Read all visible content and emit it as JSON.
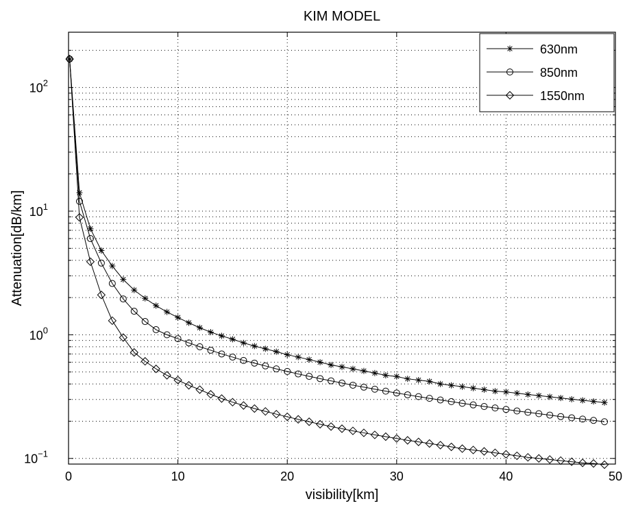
{
  "chart_data": {
    "type": "line",
    "title": "KIM MODEL",
    "xlabel": "visibility[km]",
    "ylabel": "Attenuation[dB/km]",
    "xlim": [
      0,
      50
    ],
    "ylim": [
      0.09,
      280
    ],
    "yscale": "log",
    "grid": true,
    "legend_position": "top-right",
    "x_ticks": [
      "0",
      "10",
      "20",
      "30",
      "40",
      "50"
    ],
    "y_ticks": [
      {
        "base": "10",
        "exp": "−1"
      },
      {
        "base": "10",
        "exp": "0"
      },
      {
        "base": "10",
        "exp": "1"
      },
      {
        "base": "10",
        "exp": "2"
      }
    ],
    "x": [
      0.1,
      1,
      2,
      3,
      4,
      5,
      6,
      7,
      8,
      9,
      10,
      11,
      12,
      13,
      14,
      15,
      16,
      17,
      18,
      19,
      20,
      21,
      22,
      23,
      24,
      25,
      26,
      27,
      28,
      29,
      30,
      31,
      32,
      33,
      34,
      35,
      36,
      37,
      38,
      39,
      40,
      41,
      42,
      43,
      44,
      45,
      46,
      47,
      48,
      49
    ],
    "series": [
      {
        "name": "630nm",
        "marker": "star",
        "values": [
          170,
          14.1,
          7.2,
          4.8,
          3.6,
          2.8,
          2.3,
          1.97,
          1.72,
          1.53,
          1.38,
          1.25,
          1.14,
          1.05,
          0.98,
          0.92,
          0.86,
          0.81,
          0.77,
          0.73,
          0.69,
          0.66,
          0.63,
          0.6,
          0.57,
          0.55,
          0.53,
          0.51,
          0.49,
          0.47,
          0.46,
          0.44,
          0.43,
          0.42,
          0.4,
          0.39,
          0.38,
          0.37,
          0.36,
          0.35,
          0.345,
          0.337,
          0.329,
          0.322,
          0.315,
          0.308,
          0.301,
          0.295,
          0.289,
          0.283
        ]
      },
      {
        "name": "850nm",
        "marker": "circle",
        "values": [
          170,
          12.0,
          6.0,
          3.8,
          2.6,
          1.95,
          1.55,
          1.28,
          1.1,
          1.0,
          0.93,
          0.86,
          0.8,
          0.75,
          0.7,
          0.66,
          0.62,
          0.59,
          0.56,
          0.53,
          0.505,
          0.482,
          0.461,
          0.442,
          0.424,
          0.407,
          0.391,
          0.377,
          0.363,
          0.35,
          0.338,
          0.327,
          0.316,
          0.306,
          0.297,
          0.288,
          0.279,
          0.271,
          0.263,
          0.256,
          0.249,
          0.242,
          0.236,
          0.23,
          0.224,
          0.218,
          0.213,
          0.208,
          0.203,
          0.198
        ]
      },
      {
        "name": "1550nm",
        "marker": "diamond",
        "values": [
          170,
          8.9,
          3.9,
          2.1,
          1.3,
          0.95,
          0.72,
          0.61,
          0.53,
          0.47,
          0.43,
          0.39,
          0.36,
          0.33,
          0.305,
          0.285,
          0.268,
          0.253,
          0.24,
          0.228,
          0.217,
          0.207,
          0.198,
          0.189,
          0.181,
          0.174,
          0.167,
          0.161,
          0.155,
          0.15,
          0.145,
          0.14,
          0.136,
          0.132,
          0.128,
          0.124,
          0.12,
          0.117,
          0.114,
          0.111,
          0.108,
          0.105,
          0.102,
          0.1,
          0.098,
          0.096,
          0.094,
          0.092,
          0.091,
          0.089
        ]
      }
    ]
  }
}
